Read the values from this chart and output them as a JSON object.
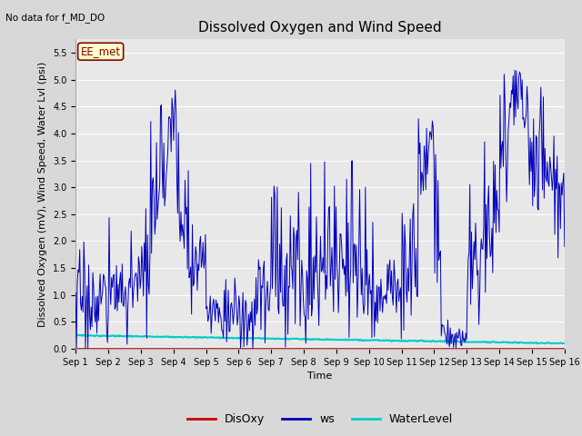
{
  "title": "Dissolved Oxygen and Wind Speed",
  "xlabel": "Time",
  "ylabel": "Dissolved Oxygen (mV), Wind Speed, Water Lvl (psi)",
  "no_data_text": "No data for f_MD_DO",
  "ee_met_label": "EE_met",
  "ylim": [
    0,
    5.75
  ],
  "yticks": [
    0.0,
    0.5,
    1.0,
    1.5,
    2.0,
    2.5,
    3.0,
    3.5,
    4.0,
    4.5,
    5.0,
    5.5
  ],
  "xlim": [
    0,
    15
  ],
  "plot_bg_color": "#e8e8e8",
  "fig_bg_color": "#d8d8d8",
  "ws_color": "#0000bb",
  "disoxy_color": "#cc0000",
  "waterlevel_color": "#00cccc",
  "grid_color": "#ffffff",
  "legend_labels": [
    "DisOxy",
    "ws",
    "WaterLevel"
  ],
  "xtick_labels": [
    "Sep 1",
    "Sep 2",
    "Sep 3",
    "Sep 4",
    "Sep 5",
    "Sep 6",
    "Sep 7",
    "Sep 8",
    "Sep 9",
    "Sep 10",
    "Sep 11",
    "Sep 12",
    "Sep 13",
    "Sep 14",
    "Sep 15",
    "Sep 16"
  ],
  "title_fontsize": 11,
  "label_fontsize": 8,
  "tick_fontsize": 7,
  "legend_fontsize": 9
}
